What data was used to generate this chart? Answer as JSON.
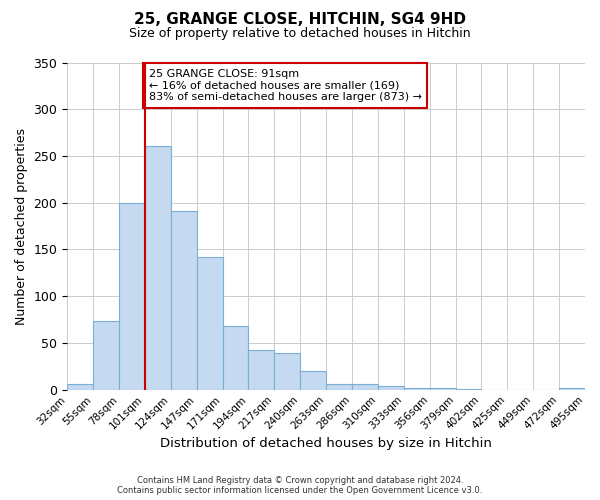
{
  "title": "25, GRANGE CLOSE, HITCHIN, SG4 9HD",
  "subtitle": "Size of property relative to detached houses in Hitchin",
  "xlabel": "Distribution of detached houses by size in Hitchin",
  "ylabel": "Number of detached properties",
  "bin_labels": [
    "32sqm",
    "55sqm",
    "78sqm",
    "101sqm",
    "124sqm",
    "147sqm",
    "171sqm",
    "194sqm",
    "217sqm",
    "240sqm",
    "263sqm",
    "286sqm",
    "310sqm",
    "333sqm",
    "356sqm",
    "379sqm",
    "402sqm",
    "425sqm",
    "449sqm",
    "472sqm",
    "495sqm"
  ],
  "bar_heights": [
    6,
    73,
    200,
    261,
    191,
    142,
    68,
    43,
    39,
    20,
    6,
    6,
    4,
    2,
    2,
    1,
    0,
    0,
    0,
    2
  ],
  "bar_color": "#c5d9f0",
  "bar_edge_color": "#7bafd4",
  "vline_color": "#cc0000",
  "ylim": [
    0,
    350
  ],
  "yticks": [
    0,
    50,
    100,
    150,
    200,
    250,
    300,
    350
  ],
  "annotation_title": "25 GRANGE CLOSE: 91sqm",
  "annotation_line1": "← 16% of detached houses are smaller (169)",
  "annotation_line2": "83% of semi-detached houses are larger (873) →",
  "annotation_box_color": "#ffffff",
  "annotation_box_edge_color": "#cc0000",
  "footer1": "Contains HM Land Registry data © Crown copyright and database right 2024.",
  "footer2": "Contains public sector information licensed under the Open Government Licence v3.0."
}
